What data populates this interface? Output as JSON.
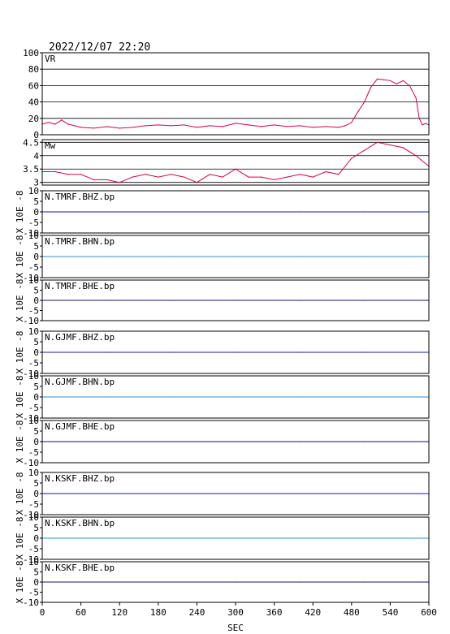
{
  "header": {
    "datetime": "2022/12/07 22:20"
  },
  "chart_data": [
    {
      "type": "line",
      "ylabel": "VR",
      "ylim": [
        0,
        100
      ],
      "yticks": [
        0,
        20,
        40,
        60,
        80,
        100
      ],
      "grid": true,
      "color": "#d8004a",
      "x": [
        0,
        10,
        20,
        30,
        40,
        50,
        60,
        80,
        100,
        120,
        140,
        160,
        180,
        200,
        220,
        240,
        260,
        280,
        300,
        320,
        340,
        360,
        380,
        400,
        420,
        440,
        460,
        470,
        480,
        490,
        500,
        510,
        520,
        530,
        540,
        550,
        560,
        570,
        580,
        585,
        590,
        595,
        600
      ],
      "y": [
        13,
        15,
        13,
        18,
        13,
        11,
        9,
        8,
        10,
        8,
        9,
        11,
        12,
        11,
        12,
        9,
        11,
        10,
        14,
        12,
        10,
        12,
        10,
        11,
        9,
        10,
        9,
        11,
        15,
        28,
        40,
        58,
        68,
        67,
        66,
        62,
        66,
        60,
        45,
        20,
        12,
        14,
        12
      ]
    },
    {
      "type": "line",
      "ylabel": "Mw",
      "ylim": [
        2.9,
        4.6
      ],
      "yticks": [
        3.0,
        3.5,
        4.0,
        4.5
      ],
      "grid": true,
      "color": "#d8004a",
      "x": [
        0,
        20,
        40,
        60,
        80,
        100,
        120,
        140,
        160,
        180,
        200,
        220,
        240,
        260,
        280,
        300,
        320,
        340,
        360,
        380,
        400,
        420,
        440,
        460,
        480,
        500,
        520,
        540,
        560,
        580,
        600
      ],
      "y": [
        3.4,
        3.4,
        3.3,
        3.3,
        3.1,
        3.1,
        3.0,
        3.2,
        3.3,
        3.2,
        3.3,
        3.2,
        3.0,
        3.3,
        3.2,
        3.5,
        3.2,
        3.2,
        3.1,
        3.2,
        3.3,
        3.2,
        3.4,
        3.3,
        3.9,
        4.2,
        4.5,
        4.4,
        4.3,
        4.0,
        3.6
      ]
    },
    {
      "type": "line",
      "label": "N.TMRF.BHZ.bp",
      "ylim": [
        -10,
        10
      ],
      "yticks": [
        -10,
        -5,
        0,
        5,
        10
      ],
      "color": "#1a1aa0",
      "x": [
        0,
        100,
        200,
        300,
        400,
        500,
        600
      ],
      "y": [
        0,
        0,
        0,
        0,
        0,
        0,
        0
      ]
    },
    {
      "type": "line",
      "label": "N.TMRF.BHN.bp",
      "ylim": [
        -10,
        10
      ],
      "yticks": [
        -10,
        -5,
        0,
        5,
        10
      ],
      "color": "#2a8fd0",
      "x": [
        0,
        100,
        200,
        300,
        400,
        500,
        600
      ],
      "y": [
        0,
        0,
        0,
        0,
        0,
        0,
        0
      ]
    },
    {
      "type": "line",
      "label": "N.TMRF.BHE.bp",
      "ylim": [
        -10,
        10
      ],
      "yticks": [
        -10,
        -5,
        0,
        5,
        10
      ],
      "color": "#151560",
      "x": [
        0,
        100,
        200,
        300,
        400,
        500,
        600
      ],
      "y": [
        0,
        0,
        0,
        0,
        0,
        0,
        0
      ]
    },
    {
      "type": "line",
      "label": "N.GJMF.BHZ.bp",
      "ylim": [
        -10,
        10
      ],
      "yticks": [
        -10,
        -5,
        0,
        5,
        10
      ],
      "color": "#1a1aa0",
      "x": [
        0,
        100,
        200,
        300,
        400,
        500,
        600
      ],
      "y": [
        0,
        0,
        0,
        0,
        0,
        0,
        0
      ]
    },
    {
      "type": "line",
      "label": "N.GJMF.BHN.bp",
      "ylim": [
        -10,
        10
      ],
      "yticks": [
        -10,
        -5,
        0,
        5,
        10
      ],
      "color": "#2a8fd0",
      "x": [
        0,
        100,
        200,
        300,
        400,
        500,
        600
      ],
      "y": [
        0,
        0,
        0,
        0,
        0,
        0,
        0
      ]
    },
    {
      "type": "line",
      "label": "N.GJMF.BHE.bp",
      "ylim": [
        -10,
        10
      ],
      "yticks": [
        -10,
        -5,
        0,
        5,
        10
      ],
      "color": "#151560",
      "x": [
        0,
        100,
        200,
        300,
        400,
        500,
        600
      ],
      "y": [
        0,
        0,
        0,
        0,
        0,
        0,
        0
      ]
    },
    {
      "type": "line",
      "label": "N.KSKF.BHZ.bp",
      "ylim": [
        -10,
        10
      ],
      "yticks": [
        -10,
        -5,
        0,
        5,
        10
      ],
      "color": "#1a1aa0",
      "x": [
        0,
        100,
        200,
        300,
        400,
        500,
        600
      ],
      "y": [
        0,
        0,
        0,
        0,
        0,
        0,
        0
      ]
    },
    {
      "type": "line",
      "label": "N.KSKF.BHN.bp",
      "ylim": [
        -10,
        10
      ],
      "yticks": [
        -10,
        -5,
        0,
        5,
        10
      ],
      "color": "#2a8fd0",
      "x": [
        0,
        100,
        200,
        300,
        400,
        500,
        600
      ],
      "y": [
        0,
        0,
        0,
        0,
        0,
        0,
        0
      ]
    },
    {
      "type": "line",
      "label": "N.KSKF.BHE.bp",
      "ylim": [
        -10,
        10
      ],
      "yticks": [
        -10,
        -5,
        0,
        5,
        10
      ],
      "color": "#151560",
      "x": [
        0,
        100,
        200,
        300,
        400,
        500,
        600
      ],
      "y": [
        0,
        0,
        0,
        0,
        0,
        0,
        0
      ]
    }
  ],
  "y_unit": "X 10E -8",
  "x_axis": {
    "label": "SEC",
    "ticks": [
      0,
      60,
      120,
      180,
      240,
      300,
      360,
      420,
      480,
      540,
      600
    ],
    "xlim": [
      0,
      600
    ]
  }
}
